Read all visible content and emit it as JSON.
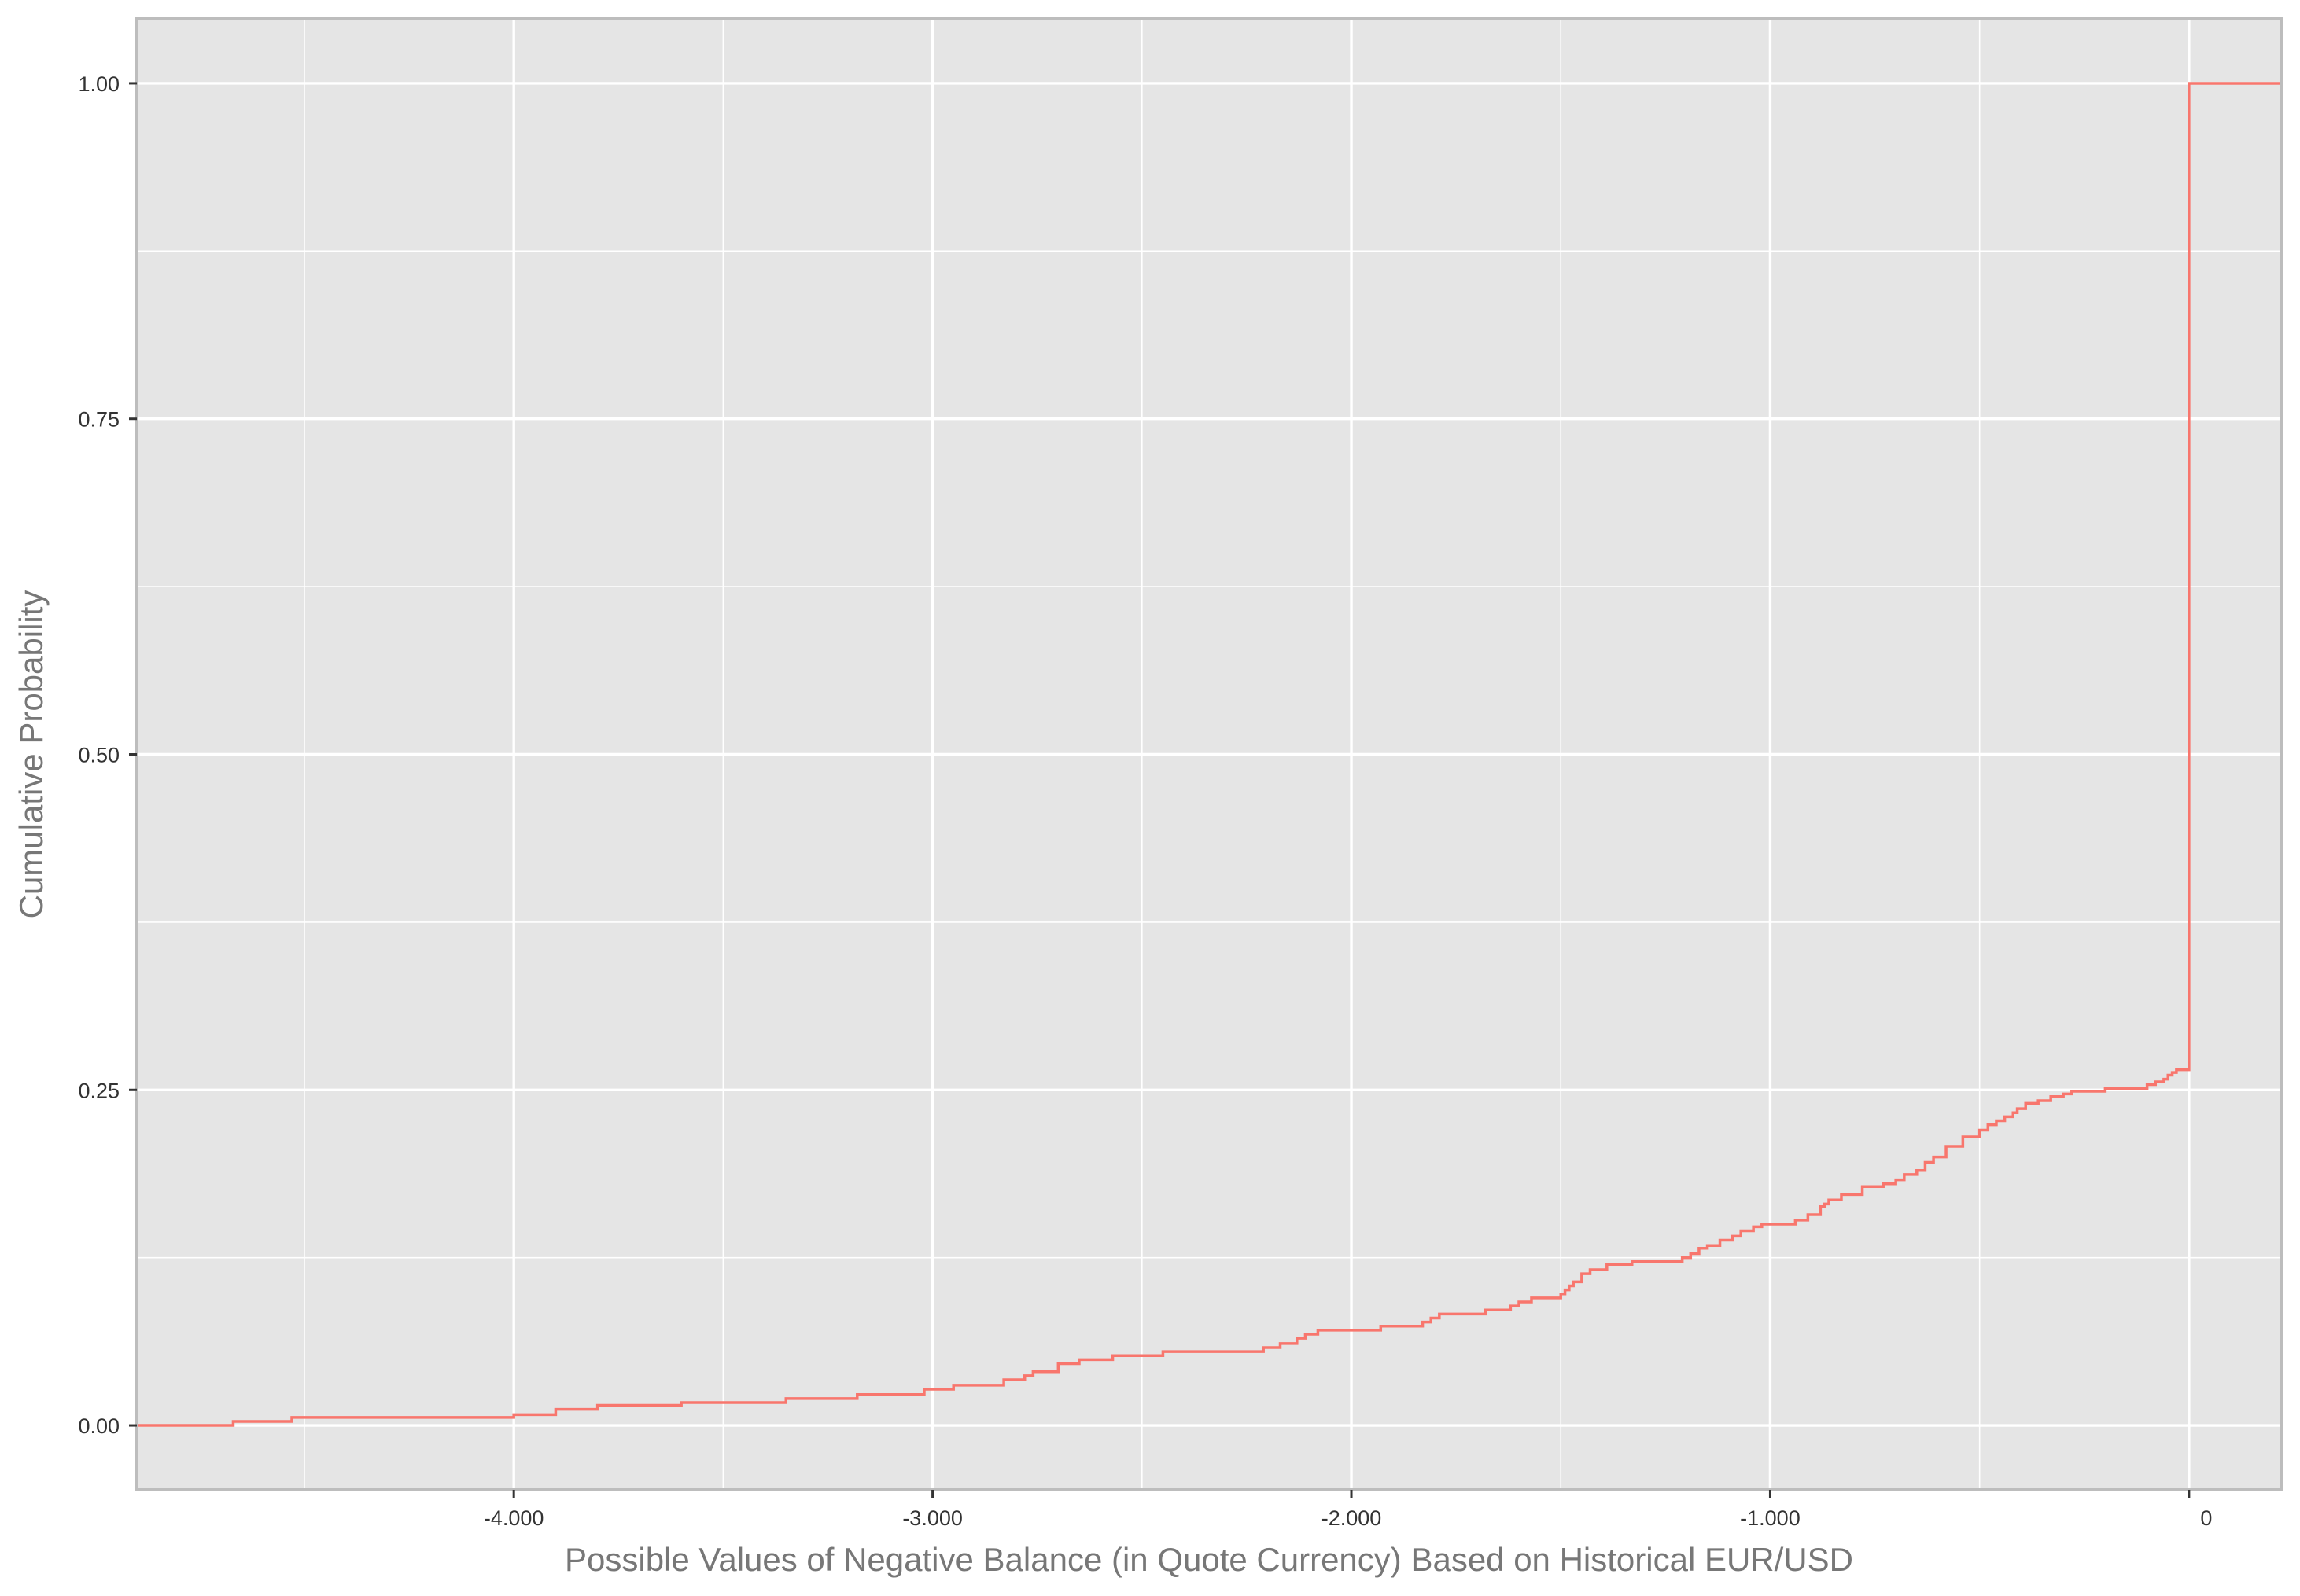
{
  "chart_data": {
    "type": "line",
    "step": true,
    "title": "",
    "xlabel": "Possible Values of Negative Balance (in Quote Currency) Based on Historical EUR/USD",
    "ylabel": "Cumulative Probability",
    "xlim": [
      -4.9,
      0.22
    ],
    "ylim": [
      -0.048,
      1.048
    ],
    "x_ticks": [
      -4,
      -3,
      -2,
      -1,
      0
    ],
    "x_tick_labels": [
      "-4.000",
      "-3.000",
      "-2.000",
      "-1.000",
      "0"
    ],
    "y_ticks": [
      0,
      0.25,
      0.5,
      0.75,
      1
    ],
    "y_tick_labels": [
      "0.00",
      "0.25",
      "0.50",
      "0.75",
      "1.00"
    ],
    "grid": true,
    "legend": "none",
    "colors": {
      "line": "#F8766D",
      "panel": "#E5E5E5",
      "grid": "#FFFFFF",
      "border": "#BDBDBD"
    },
    "series": [
      {
        "x": [
          -4.9,
          -4.67,
          -4.53,
          -4.0,
          -3.9,
          -3.8,
          -3.6,
          -3.35,
          -3.18,
          -3.02,
          -2.95,
          -2.83,
          -2.78,
          -2.76,
          -2.7,
          -2.65,
          -2.57,
          -2.45,
          -2.21,
          -2.17,
          -2.13,
          -2.11,
          -2.08,
          -1.93,
          -1.83,
          -1.81,
          -1.79,
          -1.68,
          -1.62,
          -1.6,
          -1.57,
          -1.5,
          -1.49,
          -1.48,
          -1.47,
          -1.45,
          -1.43,
          -1.39,
          -1.37,
          -1.33,
          -1.21,
          -1.19,
          -1.17,
          -1.15,
          -1.12,
          -1.09,
          -1.07,
          -1.04,
          -1.02,
          -0.94,
          -0.91,
          -0.88,
          -0.87,
          -0.86,
          -0.83,
          -0.78,
          -0.73,
          -0.7,
          -0.68,
          -0.65,
          -0.63,
          -0.61,
          -0.58,
          -0.54,
          -0.5,
          -0.48,
          -0.46,
          -0.44,
          -0.42,
          -0.41,
          -0.39,
          -0.36,
          -0.33,
          -0.3,
          -0.28,
          -0.2,
          -0.1,
          -0.08,
          -0.06,
          -0.05,
          -0.04,
          -0.03,
          -0.02,
          0.0,
          0.22
        ],
        "y": [
          0.0,
          0.003,
          0.006,
          0.008,
          0.012,
          0.015,
          0.017,
          0.02,
          0.023,
          0.027,
          0.03,
          0.034,
          0.037,
          0.04,
          0.046,
          0.049,
          0.052,
          0.055,
          0.058,
          0.061,
          0.065,
          0.068,
          0.071,
          0.074,
          0.077,
          0.08,
          0.083,
          0.086,
          0.089,
          0.092,
          0.095,
          0.098,
          0.101,
          0.104,
          0.107,
          0.113,
          0.116,
          0.12,
          0.12,
          0.122,
          0.125,
          0.128,
          0.132,
          0.134,
          0.138,
          0.141,
          0.145,
          0.148,
          0.15,
          0.153,
          0.157,
          0.163,
          0.165,
          0.168,
          0.172,
          0.178,
          0.18,
          0.183,
          0.187,
          0.19,
          0.196,
          0.2,
          0.208,
          0.215,
          0.22,
          0.224,
          0.227,
          0.23,
          0.233,
          0.236,
          0.24,
          0.242,
          0.245,
          0.247,
          0.249,
          0.251,
          0.254,
          0.256,
          0.258,
          0.261,
          0.263,
          0.265,
          0.265,
          1.0,
          1.0
        ]
      }
    ]
  }
}
